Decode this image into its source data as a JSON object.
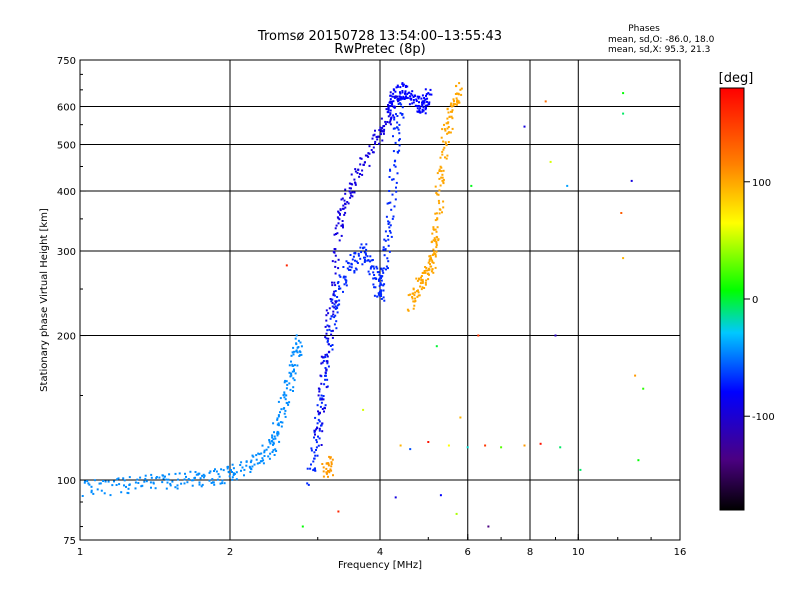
{
  "chart_data": {
    "type": "scatter",
    "title": "Tromsø 20150728 13:54:00–13:55:43",
    "subtitle": "RwPretec (8p)",
    "phases": {
      "heading": "Phases",
      "line_o": "mean, sd,O: -86.0, 18.0",
      "line_x": "mean, sd,X:  95.3, 21.3"
    },
    "xlabel": "Frequency [MHz]",
    "ylabel": "Stationary phase Virtual Height [km]",
    "x_scale": "log",
    "y_scale": "log",
    "xlim": [
      1,
      16
    ],
    "ylim": [
      75,
      750
    ],
    "grid": true,
    "x_ticks": [
      {
        "value": 1,
        "label": "1"
      },
      {
        "value": 2,
        "label": "2"
      },
      {
        "value": 4,
        "label": "4"
      },
      {
        "value": 6,
        "label": "6"
      },
      {
        "value": 8,
        "label": "8"
      },
      {
        "value": 10,
        "label": "10"
      },
      {
        "value": 16,
        "label": "16"
      }
    ],
    "y_ticks": [
      {
        "value": 75,
        "label": "75"
      },
      {
        "value": 100,
        "label": "100"
      },
      {
        "value": 200,
        "label": "200"
      },
      {
        "value": 300,
        "label": "300"
      },
      {
        "value": 400,
        "label": "400"
      },
      {
        "value": 500,
        "label": "500"
      },
      {
        "value": 600,
        "label": "600"
      },
      {
        "value": 750,
        "label": "750"
      }
    ],
    "colorbar": {
      "label": "[deg]",
      "range": [
        -180,
        180
      ],
      "ticks": [
        {
          "value": 100,
          "label": "100"
        },
        {
          "value": 0,
          "label": "0"
        },
        {
          "value": -100,
          "label": "-100"
        }
      ]
    },
    "traces": [
      {
        "name": "",
        "phase": -65,
        "points": [
          [
            1.0,
            96
          ],
          [
            1.2,
            97
          ],
          [
            1.4,
            99
          ],
          [
            1.6,
            100
          ],
          [
            1.8,
            101
          ],
          [
            2.0,
            103
          ],
          [
            2.2,
            108
          ],
          [
            2.4,
            115
          ],
          [
            2.5,
            128
          ],
          [
            2.6,
            150
          ],
          [
            2.7,
            175
          ],
          [
            2.75,
            195
          ]
        ]
      },
      {
        "name": "",
        "phase": -90,
        "points": [
          [
            2.9,
            100
          ],
          [
            3.0,
            125
          ],
          [
            3.1,
            160
          ],
          [
            3.2,
            210
          ],
          [
            3.3,
            250
          ],
          [
            3.5,
            280
          ],
          [
            3.7,
            300
          ],
          [
            3.9,
            270
          ],
          [
            4.0,
            240
          ],
          [
            4.1,
            280
          ],
          [
            4.2,
            360
          ],
          [
            4.3,
            500
          ],
          [
            4.4,
            620
          ]
        ]
      },
      {
        "name": "",
        "phase": -110,
        "points": [
          [
            3.0,
            120
          ],
          [
            3.1,
            170
          ],
          [
            3.2,
            230
          ],
          [
            3.3,
            330
          ],
          [
            3.4,
            380
          ],
          [
            3.6,
            430
          ],
          [
            3.9,
            500
          ],
          [
            4.1,
            560
          ],
          [
            4.3,
            630
          ]
        ]
      },
      {
        "name": "",
        "phase": -100,
        "points": [
          [
            4.2,
            580
          ],
          [
            4.3,
            640
          ],
          [
            4.5,
            650
          ],
          [
            4.7,
            620
          ],
          [
            4.9,
            600
          ],
          [
            5.0,
            640
          ]
        ]
      },
      {
        "name": "",
        "phase": 95,
        "points": [
          [
            4.6,
            230
          ],
          [
            4.8,
            255
          ],
          [
            5.0,
            270
          ],
          [
            5.1,
            290
          ],
          [
            5.2,
            330
          ],
          [
            5.3,
            420
          ],
          [
            5.4,
            520
          ],
          [
            5.6,
            600
          ],
          [
            5.8,
            650
          ]
        ]
      },
      {
        "name": "",
        "phase": 100,
        "points": [
          [
            3.1,
            103
          ],
          [
            3.2,
            108
          ]
        ]
      }
    ],
    "sparse_points": [
      {
        "x": 4.4,
        "y": 118,
        "phase": 90
      },
      {
        "x": 4.6,
        "y": 116,
        "phase": -80
      },
      {
        "x": 5.0,
        "y": 120,
        "phase": 170
      },
      {
        "x": 5.5,
        "y": 118,
        "phase": 60
      },
      {
        "x": 6.0,
        "y": 117,
        "phase": -40
      },
      {
        "x": 6.5,
        "y": 118,
        "phase": 150
      },
      {
        "x": 7.0,
        "y": 117,
        "phase": 20
      },
      {
        "x": 7.8,
        "y": 118,
        "phase": 100
      },
      {
        "x": 8.4,
        "y": 119,
        "phase": 170
      },
      {
        "x": 9.2,
        "y": 117,
        "phase": -20
      },
      {
        "x": 8.8,
        "y": 460,
        "phase": 50
      },
      {
        "x": 9.5,
        "y": 410,
        "phase": -60
      },
      {
        "x": 8.6,
        "y": 615,
        "phase": 120
      },
      {
        "x": 12.3,
        "y": 640,
        "phase": 0
      },
      {
        "x": 12.3,
        "y": 580,
        "phase": -20
      },
      {
        "x": 12.8,
        "y": 420,
        "phase": -110
      },
      {
        "x": 12.2,
        "y": 360,
        "phase": 130
      },
      {
        "x": 12.3,
        "y": 290,
        "phase": 90
      },
      {
        "x": 13.0,
        "y": 165,
        "phase": 100
      },
      {
        "x": 13.5,
        "y": 155,
        "phase": 10
      },
      {
        "x": 13.2,
        "y": 110,
        "phase": 0
      },
      {
        "x": 10.1,
        "y": 105,
        "phase": -20
      },
      {
        "x": 9.0,
        "y": 200,
        "phase": -120
      },
      {
        "x": 7.8,
        "y": 545,
        "phase": -110
      },
      {
        "x": 6.1,
        "y": 410,
        "phase": -5
      },
      {
        "x": 5.2,
        "y": 190,
        "phase": -10
      },
      {
        "x": 6.3,
        "y": 200,
        "phase": 150
      },
      {
        "x": 4.3,
        "y": 92,
        "phase": -110
      },
      {
        "x": 5.3,
        "y": 93,
        "phase": -100
      },
      {
        "x": 5.7,
        "y": 85,
        "phase": 40
      },
      {
        "x": 6.6,
        "y": 80,
        "phase": -140
      },
      {
        "x": 2.8,
        "y": 80,
        "phase": 0
      },
      {
        "x": 3.3,
        "y": 86,
        "phase": 160
      },
      {
        "x": 2.6,
        "y": 280,
        "phase": 160
      },
      {
        "x": 5.8,
        "y": 135,
        "phase": 90
      },
      {
        "x": 3.7,
        "y": 140,
        "phase": 50
      }
    ]
  }
}
